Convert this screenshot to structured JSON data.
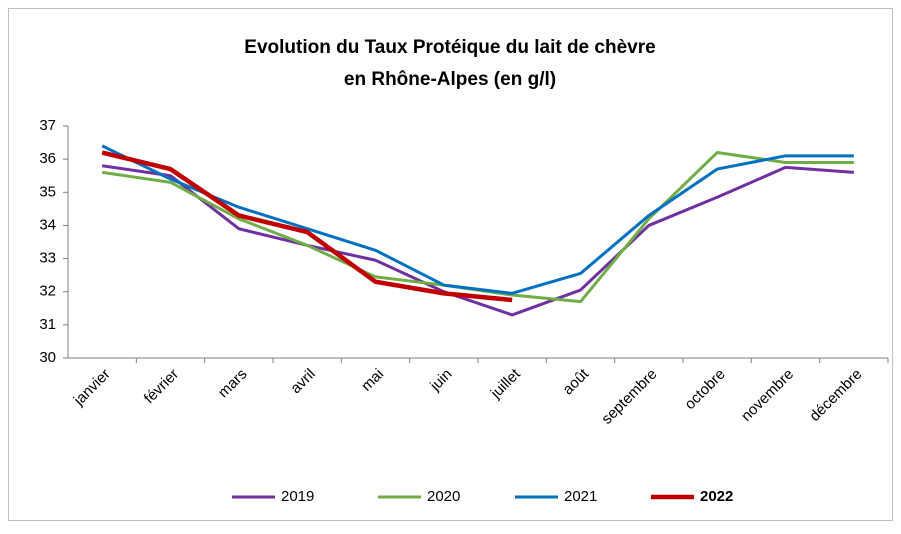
{
  "chart_data": {
    "type": "line",
    "title": [
      "Evolution du Taux Protéique du lait de chèvre",
      "en Rhône-Alpes (en g/l)"
    ],
    "categories": [
      "janvier",
      "février",
      "mars",
      "avril",
      "mai",
      "juin",
      "juillet",
      "août",
      "septembre",
      "octobre",
      "novembre",
      "décembre"
    ],
    "series": [
      {
        "name": "2019",
        "color": "#7030a0",
        "values": [
          35.8,
          35.5,
          33.9,
          33.4,
          32.95,
          32.0,
          31.3,
          32.05,
          34.0,
          34.85,
          35.75,
          35.6
        ]
      },
      {
        "name": "2020",
        "color": "#70ad47",
        "values": [
          35.6,
          35.3,
          34.2,
          33.4,
          32.45,
          32.2,
          31.9,
          31.7,
          34.2,
          36.2,
          35.9,
          35.9
        ]
      },
      {
        "name": "2021",
        "color": "#0070c0",
        "values": [
          36.4,
          35.4,
          34.55,
          33.9,
          33.25,
          32.2,
          31.95,
          32.55,
          34.3,
          35.7,
          36.1,
          36.1
        ]
      },
      {
        "name": "2022",
        "color": "#c00000",
        "bold": true,
        "values": [
          36.2,
          35.7,
          34.3,
          33.8,
          32.3,
          31.95,
          31.75,
          null,
          null,
          null,
          null,
          null
        ]
      }
    ],
    "ylim": [
      30,
      37
    ],
    "yticks": [
      30,
      31,
      32,
      33,
      34,
      35,
      36,
      37
    ],
    "grid": false,
    "legend": "bottom"
  }
}
